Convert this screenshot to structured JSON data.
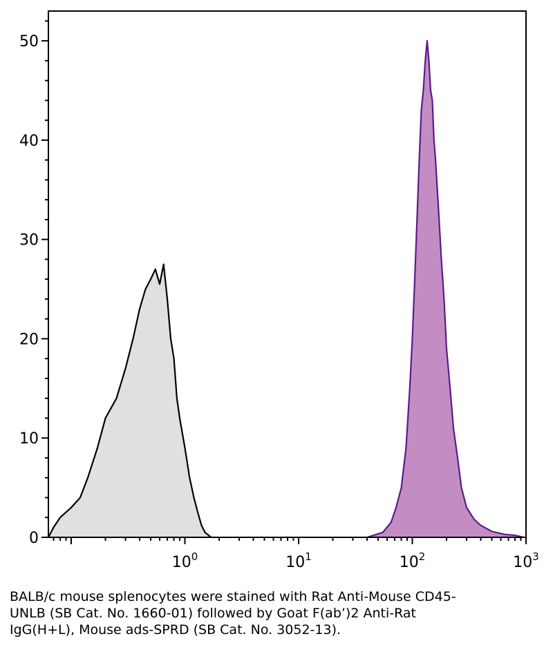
{
  "chart_data": {
    "type": "area",
    "title": "",
    "xlabel": "",
    "ylabel": "",
    "x_scale": "log",
    "xlim": [
      0.063,
      1000
    ],
    "ylim": [
      0,
      53
    ],
    "grid": false,
    "y_ticks": [
      "0",
      "10",
      "20",
      "30",
      "40",
      "50"
    ],
    "x_ticks": [
      {
        "base": "10",
        "exp": "0",
        "value": 1
      },
      {
        "base": "10",
        "exp": "1",
        "value": 10
      },
      {
        "base": "10",
        "exp": "2",
        "value": 100
      },
      {
        "base": "10",
        "exp": "3",
        "value": 1000
      }
    ],
    "series": [
      {
        "fill": "#e0e0e0",
        "stroke": "#000000",
        "points": [
          [
            0.063,
            0
          ],
          [
            0.07,
            1
          ],
          [
            0.08,
            2
          ],
          [
            0.1,
            3
          ],
          [
            0.12,
            4
          ],
          [
            0.14,
            6
          ],
          [
            0.17,
            9
          ],
          [
            0.2,
            12
          ],
          [
            0.25,
            14
          ],
          [
            0.3,
            17
          ],
          [
            0.35,
            20
          ],
          [
            0.4,
            23
          ],
          [
            0.45,
            25
          ],
          [
            0.5,
            26
          ],
          [
            0.55,
            27
          ],
          [
            0.6,
            25.5
          ],
          [
            0.65,
            27.5
          ],
          [
            0.7,
            24
          ],
          [
            0.75,
            20
          ],
          [
            0.8,
            18
          ],
          [
            0.85,
            14
          ],
          [
            0.9,
            12
          ],
          [
            1.0,
            9
          ],
          [
            1.1,
            6
          ],
          [
            1.2,
            4
          ],
          [
            1.3,
            2.5
          ],
          [
            1.4,
            1.2
          ],
          [
            1.5,
            0.5
          ],
          [
            1.7,
            0
          ]
        ]
      },
      {
        "fill": "#c38dc3",
        "stroke": "#5a1a8c",
        "points": [
          [
            40,
            0
          ],
          [
            55,
            0.5
          ],
          [
            65,
            1.5
          ],
          [
            72,
            3
          ],
          [
            80,
            5
          ],
          [
            88,
            9
          ],
          [
            95,
            15
          ],
          [
            100,
            20
          ],
          [
            105,
            26
          ],
          [
            110,
            32
          ],
          [
            115,
            38
          ],
          [
            120,
            43
          ],
          [
            125,
            45
          ],
          [
            130,
            48
          ],
          [
            135,
            50
          ],
          [
            140,
            48
          ],
          [
            145,
            45
          ],
          [
            150,
            44
          ],
          [
            155,
            40
          ],
          [
            160,
            38
          ],
          [
            170,
            33
          ],
          [
            180,
            28
          ],
          [
            190,
            24
          ],
          [
            200,
            19
          ],
          [
            215,
            15
          ],
          [
            230,
            11
          ],
          [
            250,
            8
          ],
          [
            270,
            5
          ],
          [
            300,
            3
          ],
          [
            350,
            1.8
          ],
          [
            400,
            1.2
          ],
          [
            500,
            0.6
          ],
          [
            650,
            0.3
          ],
          [
            800,
            0.2
          ],
          [
            950,
            0
          ]
        ]
      }
    ]
  },
  "caption": "BALB/c mouse splenocytes were stained with Rat Anti-Mouse CD45-UNLB (SB Cat. No. 1660-01) followed by Goat F(ab’)2 Anti-Rat IgG(H+L), Mouse ads-SPRD (SB Cat. No. 3052-13)."
}
